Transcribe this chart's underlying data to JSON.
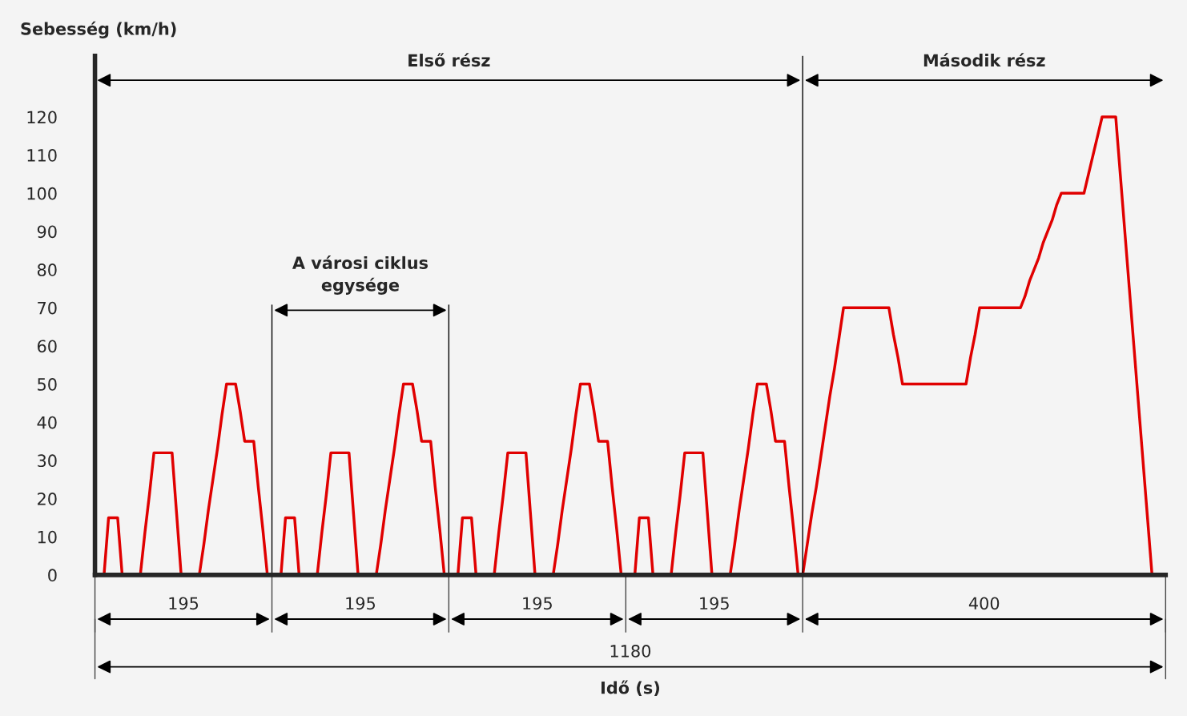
{
  "chart_data": {
    "type": "line",
    "ylabel": "Sebesség (km/h)",
    "categories": [
      null,
      null,
      null,
      null,
      null,
      null,
      null,
      null,
      null,
      null,
      null,
      null,
      null,
      null,
      null,
      null,
      null,
      null,
      null,
      null,
      null,
      null,
      null,
      null,
      null,
      null,
      null,
      null,
      null,
      null,
      null,
      null,
      null,
      null,
      null,
      null,
      null,
      null,
      null,
      null,
      null,
      null,
      null,
      null,
      null,
      null,
      null,
      null,
      null,
      null,
      null,
      null,
      null,
      null,
      null,
      null,
      null,
      null,
      null,
      null,
      null,
      null,
      null,
      null,
      null,
      null,
      null,
      null,
      null,
      null,
      null,
      null,
      null,
      null,
      null,
      null,
      null,
      null,
      null,
      null,
      null,
      null,
      null,
      null,
      null,
      null,
      null,
      null,
      null,
      null,
      null,
      null,
      null,
      null,
      null,
      null,
      null,
      null,
      null,
      null,
      null,
      null,
      null,
      null,
      null,
      null,
      null,
      null,
      null,
      null,
      null,
      null,
      null,
      null,
      null,
      null,
      null,
      null,
      null,
      null,
      null,
      null,
      null,
      null,
      null,
      null,
      null,
      null,
      null,
      null,
      null,
      null,
      null,
      null,
      null,
      null,
      null,
      null,
      null,
      null,
      null,
      null,
      null,
      null,
      null,
      null,
      null,
      null,
      null,
      null,
      null,
      null,
      null,
      null,
      null,
      null,
      null,
      null,
      null,
      null,
      null,
      null,
      null,
      null,
      null,
      null,
      null,
      null,
      null,
      null,
      null,
      null,
      null,
      null,
      null,
      null,
      null,
      null,
      null,
      null,
      null,
      null,
      null,
      null,
      null,
      null,
      null,
      null,
      null,
      null,
      null,
      null,
      null,
      null,
      null,
      null,
      null,
      null,
      null,
      null,
      null,
      null,
      null,
      null,
      null,
      null,
      null,
      null,
      null,
      null,
      null,
      null,
      null,
      null,
      null,
      null,
      null,
      null,
      null,
      null,
      null,
      null,
      null,
      null,
      null,
      null,
      null,
      null,
      null,
      null,
      null,
      null,
      null,
      null,
      null,
      null,
      null
    ],
    "series": [
      {
        "color": "#e00000",
        "values": [
          0,
          0,
          0,
          15,
          15,
          15,
          0,
          0,
          0,
          0,
          0,
          11,
          21,
          32,
          32,
          32,
          32,
          32,
          16,
          0,
          0,
          0,
          0,
          0,
          8,
          17,
          25,
          33,
          42,
          50,
          50,
          50,
          43,
          35,
          35,
          35,
          23,
          12,
          0,
          0,
          0,
          0,
          15,
          15,
          15,
          0,
          0,
          0,
          0,
          0,
          11,
          21,
          32,
          32,
          32,
          32,
          32,
          16,
          0,
          0,
          0,
          0,
          0,
          8,
          17,
          25,
          33,
          42,
          50,
          50,
          50,
          43,
          35,
          35,
          35,
          23,
          12,
          0,
          0,
          0,
          0,
          15,
          15,
          15,
          0,
          0,
          0,
          0,
          0,
          11,
          21,
          32,
          32,
          32,
          32,
          32,
          16,
          0,
          0,
          0,
          0,
          0,
          8,
          17,
          25,
          33,
          42,
          50,
          50,
          50,
          43,
          35,
          35,
          35,
          23,
          12,
          0,
          0,
          0,
          0,
          15,
          15,
          15,
          0,
          0,
          0,
          0,
          0,
          11,
          21,
          32,
          32,
          32,
          32,
          32,
          16,
          0,
          0,
          0,
          0,
          0,
          8,
          17,
          25,
          33,
          42,
          50,
          50,
          50,
          43,
          35,
          35,
          35,
          23,
          12,
          0,
          0,
          8,
          16,
          23,
          31,
          39,
          47,
          54,
          62,
          70,
          70,
          70,
          70,
          70,
          70,
          70,
          70,
          70,
          70,
          70,
          63,
          57,
          50,
          50,
          50,
          50,
          50,
          50,
          50,
          50,
          50,
          50,
          50,
          50,
          50,
          50,
          50,
          57,
          63,
          70,
          70,
          70,
          70,
          70,
          70,
          70,
          70,
          70,
          70,
          73,
          77,
          80,
          83,
          87,
          90,
          93,
          97,
          100,
          100,
          100,
          100,
          100,
          100,
          105,
          110,
          115,
          120,
          120,
          120,
          120,
          105,
          90,
          75,
          60,
          45,
          30,
          15,
          0,
          0,
          0,
          0
        ]
      }
    ],
    "ylim": [
      0,
      136
    ],
    "yticks": [
      0,
      10,
      20,
      30,
      40,
      50,
      60,
      70,
      80,
      90,
      100,
      110,
      120
    ],
    "tick_labels": "y",
    "grid": false,
    "legend": false,
    "marker": "none",
    "line_style": "solid",
    "annotations": [
      "Első rész",
      "Második rész",
      "A városi ciklus\negysége",
      "195",
      "195",
      "195",
      "195",
      "400",
      "1180",
      "Idő (s)"
    ]
  }
}
